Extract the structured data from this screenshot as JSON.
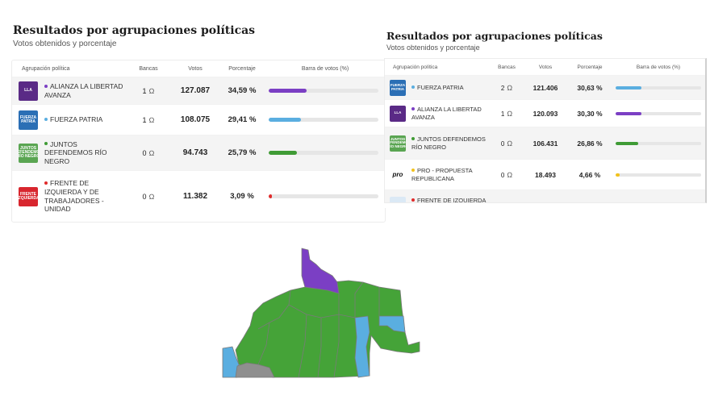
{
  "left_panel": {
    "title": "Resultados por agrupaciones políticas",
    "subtitle": "Votos obtenidos y porcentaje",
    "columns": [
      "Agrupación política",
      "Bancas",
      "Votos",
      "Porcentaje",
      "Barra de votos (%)"
    ],
    "rows": [
      {
        "name": "ALIANZA LA LIBERTAD AVANZA",
        "bancas": "1",
        "votos": "127.087",
        "pct": "34,59 %",
        "pct_value": 34.59,
        "color": "#7b3fc4",
        "logo_bg": "#5a2a86",
        "logo_text": "LLA"
      },
      {
        "name": "FUERZA PATRIA",
        "bancas": "1",
        "votos": "108.075",
        "pct": "29,41 %",
        "pct_value": 29.41,
        "color": "#5aaee0",
        "logo_bg": "#2b6fb5",
        "logo_text": "FUERZA PATRIA"
      },
      {
        "name": "JUNTOS DEFENDEMOS RÍO NEGRO",
        "bancas": "0",
        "votos": "94.743",
        "pct": "25,79 %",
        "pct_value": 25.79,
        "color": "#3f9b35",
        "logo_bg": "#5aa552",
        "logo_text": "JUNTOS DEFENDEMOS RÍO NEGRO"
      },
      {
        "name": "FRENTE DE IZQUIERDA Y DE TRABAJADORES - UNIDAD",
        "bancas": "0",
        "votos": "11.382",
        "pct": "3,09 %",
        "pct_value": 3.09,
        "color": "#e02b2b",
        "logo_bg": "#d8262e",
        "logo_text": "FRENTE IZQUIERDA"
      }
    ]
  },
  "right_panel": {
    "title": "Resultados por agrupaciones políticas",
    "subtitle": "Votos obtenidos y porcentaje",
    "columns": [
      "Agrupación política",
      "Bancas",
      "Votos",
      "Porcentaje",
      "Barra de votos (%)"
    ],
    "rows": [
      {
        "name": "FUERZA PATRIA",
        "bancas": "2",
        "votos": "121.406",
        "pct": "30,63 %",
        "pct_value": 30.63,
        "color": "#5aaee0",
        "logo_bg": "#2b6fb5",
        "logo_text": "FUERZA PATRIA"
      },
      {
        "name": "ALIANZA LA LIBERTAD AVANZA",
        "bancas": "1",
        "votos": "120.093",
        "pct": "30,30 %",
        "pct_value": 30.3,
        "color": "#7b3fc4",
        "logo_bg": "#5a2a86",
        "logo_text": "LLA"
      },
      {
        "name": "JUNTOS DEFENDEMOS RÍO NEGRO",
        "bancas": "0",
        "votos": "106.431",
        "pct": "26,86 %",
        "pct_value": 26.86,
        "color": "#3f9b35",
        "logo_bg": "#5aa552",
        "logo_text": "JUNTOS DEFENDEMOS RÍO NEGRO"
      },
      {
        "name": "PRO - PROPUESTA REPUBLICANA",
        "bancas": "0",
        "votos": "18.493",
        "pct": "4,66 %",
        "pct_value": 4.66,
        "color": "#f2c21b",
        "logo_bg": "#ffffff",
        "logo_text": "pro"
      },
      {
        "name": "FRENTE DE IZQUIERDA Y DE",
        "bancas": "",
        "votos": "",
        "pct": "",
        "pct_value": 0,
        "color": "#e02b2b",
        "logo_bg": "#dbe9f5",
        "logo_text": ""
      }
    ]
  },
  "map": {
    "colors": {
      "purple": "#7b3fc4",
      "green": "#45a338",
      "blue": "#5aaee0",
      "gray": "#8f8f8f",
      "border": "#7a7a7a"
    }
  }
}
